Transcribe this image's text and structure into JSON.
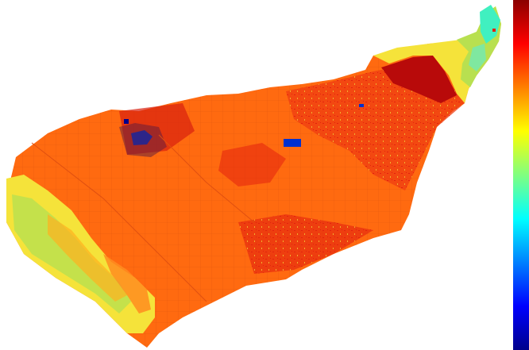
{
  "map": {
    "description_free": true,
    "background": "#ffffff"
  },
  "colors": {
    "dominant_class": "#ff6a10",
    "high_class": "#e01a10",
    "max_class": "#b80a0a",
    "mid_high": "#ffb020",
    "mid": "#f5e33a",
    "mid_low": "#b8e050",
    "low_mid": "#40f0c0",
    "low": "#00b0ff",
    "very_low": "#0030d0",
    "min": "#00008c"
  },
  "colorbar": {
    "stops": [
      "#8b0000",
      "#ff0000",
      "#ff8000",
      "#ffff00",
      "#80ff80",
      "#00ffff",
      "#0080ff",
      "#0000ff",
      "#00008b"
    ]
  }
}
